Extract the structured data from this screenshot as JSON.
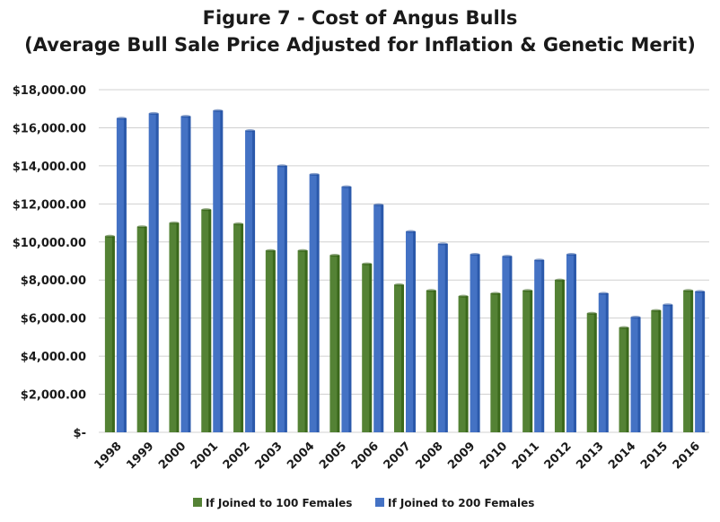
{
  "chart_data": {
    "type": "bar",
    "title": "Figure 7 - Cost of Angus Bulls",
    "subtitle": "(Average Bull Sale Price Adjusted for Inflation & Genetic Merit)",
    "xlabel": "",
    "ylabel": "",
    "ylim": [
      0,
      18000
    ],
    "yticks": [
      0,
      2000,
      4000,
      6000,
      8000,
      10000,
      12000,
      14000,
      16000,
      18000
    ],
    "ytick_labels": [
      "$-",
      "$2,000.00",
      "$4,000.00",
      "$6,000.00",
      "$8,000.00",
      "$10,000.00",
      "$12,000.00",
      "$14,000.00",
      "$16,000.00",
      "$18,000.00"
    ],
    "grid": true,
    "legend_position": "bottom",
    "categories": [
      "1998",
      "1999",
      "2000",
      "2001",
      "2002",
      "2003",
      "2004",
      "2005",
      "2006",
      "2007",
      "2008",
      "2009",
      "2010",
      "2011",
      "2012",
      "2013",
      "2014",
      "2015",
      "2016"
    ],
    "series": [
      {
        "name": "If Joined to 100 Females",
        "color": "#548235",
        "values": [
          10300,
          10800,
          11000,
          11700,
          10950,
          9550,
          9550,
          9300,
          8850,
          7750,
          7450,
          7150,
          7300,
          7450,
          8000,
          6250,
          5500,
          6400,
          7450
        ]
      },
      {
        "name": "If Joined to 200 Females",
        "color": "#4472C4",
        "values": [
          16500,
          16750,
          16600,
          16900,
          15850,
          14000,
          13550,
          12900,
          11950,
          10550,
          9900,
          9350,
          9250,
          9050,
          9350,
          7300,
          6050,
          6700,
          7400
        ]
      }
    ]
  }
}
